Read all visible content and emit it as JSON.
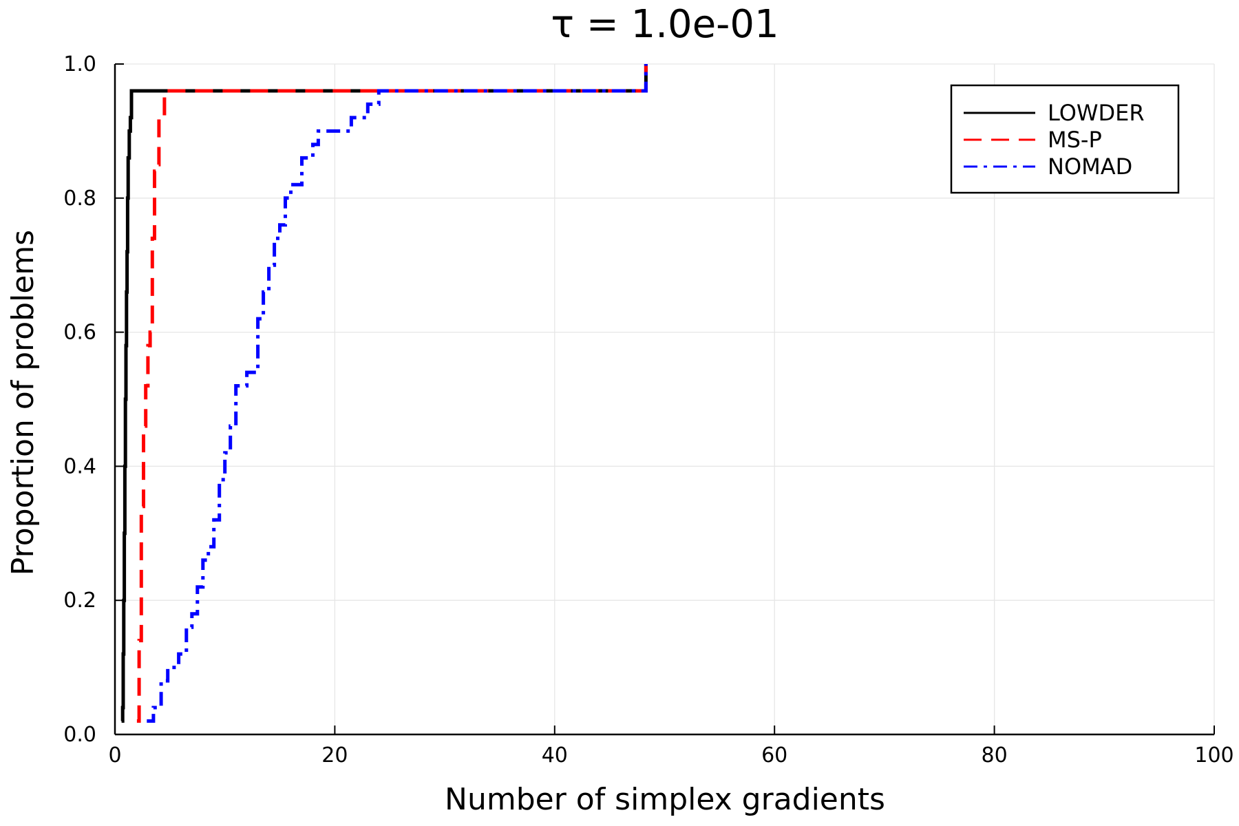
{
  "chart_data": {
    "type": "line",
    "title": "τ = 1.0e-01",
    "xlabel": "Number of simplex gradients",
    "ylabel": "Proportion of problems",
    "xlim": [
      0,
      100
    ],
    "ylim": [
      0,
      1
    ],
    "xticks": [
      0,
      20,
      40,
      60,
      80,
      100
    ],
    "xtick_labels": [
      "0",
      "20",
      "40",
      "60",
      "80",
      "100"
    ],
    "yticks": [
      0,
      0.2,
      0.4,
      0.6,
      0.8,
      1.0
    ],
    "ytick_labels": [
      "0.0",
      "0.2",
      "0.4",
      "0.6",
      "0.8",
      "1.0"
    ],
    "grid": true,
    "legend_position": "top-right",
    "step": true,
    "series": [
      {
        "name": "LOWDER",
        "color": "#000000",
        "style": "solid",
        "x": [
          0.6,
          0.7,
          0.75,
          0.8,
          0.85,
          0.9,
          0.95,
          1.0,
          1.05,
          1.1,
          1.15,
          1.2,
          1.3,
          1.4,
          1.5,
          48.3
        ],
        "y": [
          0.02,
          0.04,
          0.12,
          0.2,
          0.3,
          0.4,
          0.5,
          0.58,
          0.66,
          0.72,
          0.8,
          0.86,
          0.9,
          0.92,
          0.96,
          1.0
        ]
      },
      {
        "name": "MS-P",
        "color": "#ff0000",
        "style": "dash",
        "x": [
          2.0,
          2.2,
          2.4,
          2.6,
          2.8,
          3.0,
          3.2,
          3.4,
          3.6,
          3.8,
          4.0,
          4.5,
          48.3
        ],
        "y": [
          0.02,
          0.14,
          0.34,
          0.46,
          0.52,
          0.58,
          0.6,
          0.74,
          0.84,
          0.85,
          0.92,
          0.96,
          1.0
        ]
      },
      {
        "name": "NOMAD",
        "color": "#0000ff",
        "style": "dashdot",
        "x": [
          2.9,
          3.5,
          4.2,
          4.8,
          5.8,
          6.5,
          7.0,
          7.5,
          8.0,
          8.5,
          9.0,
          9.5,
          10.0,
          10.5,
          11.0,
          12.0,
          13.0,
          13.5,
          14.0,
          14.5,
          15.0,
          15.5,
          16.0,
          17.0,
          18.0,
          18.5,
          19.5,
          21.5,
          23.0,
          24.0,
          48.3
        ],
        "y": [
          0.02,
          0.04,
          0.08,
          0.1,
          0.12,
          0.16,
          0.18,
          0.22,
          0.26,
          0.28,
          0.32,
          0.38,
          0.42,
          0.46,
          0.52,
          0.54,
          0.62,
          0.66,
          0.7,
          0.74,
          0.76,
          0.8,
          0.82,
          0.86,
          0.88,
          0.9,
          0.9,
          0.92,
          0.94,
          0.96,
          1.0
        ]
      }
    ]
  }
}
